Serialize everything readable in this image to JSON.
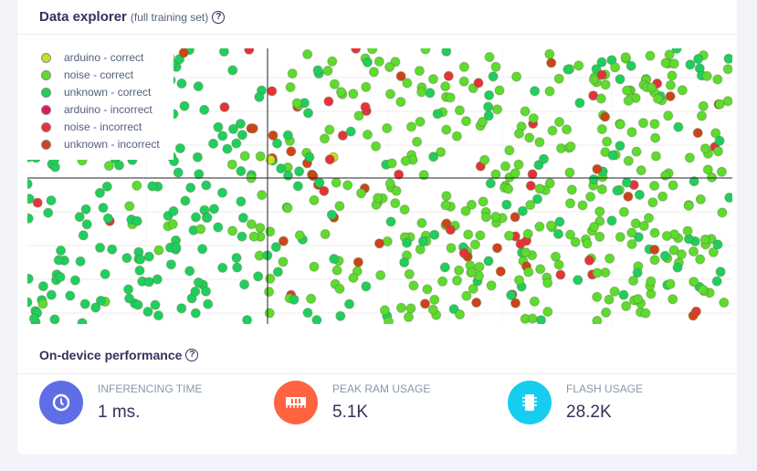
{
  "data_explorer": {
    "title": "Data explorer",
    "subtitle": "(full training set)",
    "help_icon": "question-circle-icon",
    "legend": [
      {
        "label": "arduino - correct",
        "color": "#c8e020"
      },
      {
        "label": "noise - correct",
        "color": "#5ddc2e"
      },
      {
        "label": "unknown - correct",
        "color": "#1ecf5f"
      },
      {
        "label": "arduino - incorrect",
        "color": "#e0185a"
      },
      {
        "label": "noise - incorrect",
        "color": "#e8313a"
      },
      {
        "label": "unknown - incorrect",
        "color": "#cf4318"
      }
    ]
  },
  "performance": {
    "title": "On-device performance",
    "help_icon": "question-circle-icon",
    "metrics": [
      {
        "label": "INFERENCING TIME",
        "value": "1 ms.",
        "icon": "clock-icon",
        "color": "#5f6ee6"
      },
      {
        "label": "PEAK RAM USAGE",
        "value": "5.1K",
        "icon": "memory-icon",
        "color": "#ff6340"
      },
      {
        "label": "FLASH USAGE",
        "value": "28.2K",
        "icon": "chip-icon",
        "color": "#16cdf0"
      }
    ]
  }
}
